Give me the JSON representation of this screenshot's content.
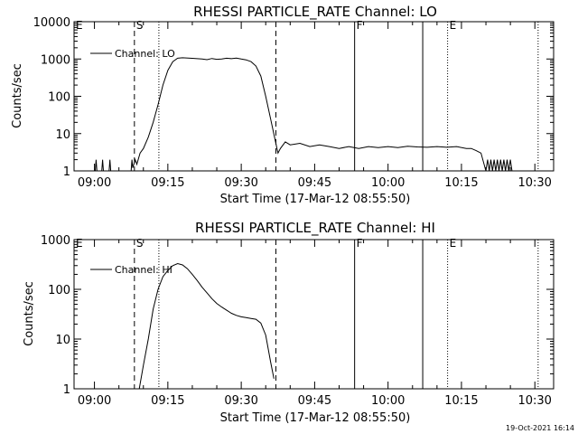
{
  "chart_data": [
    {
      "type": "line",
      "title": "RHESSI PARTICLE_RATE Channel: LO",
      "xlabel": "Start Time (17-Mar-12 08:55:50)",
      "ylabel": "Counts/sec",
      "y_scale": "log",
      "ylim": [
        1,
        10000
      ],
      "x_unit": "minutes after 08:55:50",
      "xlim": [
        0,
        38
      ],
      "x_tick_labels": [
        "09:00",
        "09:15",
        "09:30",
        "09:45",
        "10:00",
        "10:15",
        "10:30"
      ],
      "y_tick_labels": [
        "1",
        "10",
        "100",
        "1000",
        "10000"
      ],
      "y_ticks": [
        1,
        10,
        100,
        1000,
        10000
      ],
      "legend": {
        "position": "top-left",
        "entries": [
          "Channel: LO"
        ]
      },
      "markers": [
        {
          "label": "E",
          "time": "08:55:50",
          "style": "solid"
        },
        {
          "label": "S",
          "time": "09:08:10",
          "style": "dashed"
        },
        {
          "label": "",
          "time": "09:13:10",
          "style": "dotted"
        },
        {
          "label": "",
          "time": "09:37:05",
          "style": "dashed"
        },
        {
          "label": "F",
          "time": "09:53:10",
          "style": "solid"
        },
        {
          "label": "",
          "time": "10:07:05",
          "style": "solid"
        },
        {
          "label": "E",
          "time": "10:12:10",
          "style": "dotted"
        },
        {
          "label": "",
          "time": "10:30:40",
          "style": "dotted"
        }
      ],
      "series": [
        {
          "name": "Channel: LO",
          "points": [
            [
              "09:00:10",
              1
            ],
            [
              "09:00:20",
              2
            ],
            [
              "09:00:30",
              1
            ],
            [
              "09:01:30",
              1
            ],
            [
              "09:01:40",
              2
            ],
            [
              "09:01:50",
              1
            ],
            [
              "09:03:00",
              1
            ],
            [
              "09:03:10",
              2
            ],
            [
              "09:03:20",
              1
            ],
            [
              "09:07:30",
              1
            ],
            [
              "09:07:40",
              2
            ],
            [
              "09:07:50",
              1.2
            ],
            [
              "09:08:20",
              2
            ],
            [
              "09:08:40",
              1.5
            ],
            [
              "09:09:20",
              3
            ],
            [
              "09:10:00",
              4
            ],
            [
              "09:11:00",
              8
            ],
            [
              "09:12:00",
              20
            ],
            [
              "09:13:00",
              60
            ],
            [
              "09:14:00",
              200
            ],
            [
              "09:15:00",
              500
            ],
            [
              "09:16:00",
              850
            ],
            [
              "09:17:00",
              1050
            ],
            [
              "09:18:00",
              1080
            ],
            [
              "09:20:00",
              1040
            ],
            [
              "09:22:00",
              1000
            ],
            [
              "09:23:00",
              960
            ],
            [
              "09:24:00",
              1030
            ],
            [
              "09:25:00",
              980
            ],
            [
              "09:26:00",
              1000
            ],
            [
              "09:27:00",
              1050
            ],
            [
              "09:28:00",
              1020
            ],
            [
              "09:29:00",
              1060
            ],
            [
              "09:30:00",
              1000
            ],
            [
              "09:31:00",
              950
            ],
            [
              "09:32:00",
              850
            ],
            [
              "09:33:00",
              650
            ],
            [
              "09:34:00",
              350
            ],
            [
              "09:35:00",
              100
            ],
            [
              "09:36:00",
              25
            ],
            [
              "09:37:00",
              6
            ],
            [
              "09:37:30",
              3
            ],
            [
              "09:38:00",
              4
            ],
            [
              "09:39:00",
              6
            ],
            [
              "09:40:00",
              5
            ],
            [
              "09:42:00",
              5.5
            ],
            [
              "09:44:00",
              4.5
            ],
            [
              "09:46:00",
              5
            ],
            [
              "09:48:00",
              4.5
            ],
            [
              "09:50:00",
              4
            ],
            [
              "09:52:00",
              4.5
            ],
            [
              "09:54:00",
              4
            ],
            [
              "09:56:00",
              4.5
            ],
            [
              "09:58:00",
              4.2
            ],
            [
              "10:00:00",
              4.5
            ],
            [
              "10:02:00",
              4.2
            ],
            [
              "10:04:00",
              4.6
            ],
            [
              "10:06:00",
              4.4
            ],
            [
              "10:08:00",
              4.3
            ],
            [
              "10:10:00",
              4.5
            ],
            [
              "10:12:00",
              4.3
            ],
            [
              "10:14:00",
              4.5
            ],
            [
              "10:16:00",
              4.0
            ],
            [
              "10:17:00",
              4.0
            ],
            [
              "10:18:00",
              3.5
            ],
            [
              "10:19:00",
              3.0
            ],
            [
              "10:20:00",
              1.0
            ],
            [
              "10:20:20",
              2.0
            ],
            [
              "10:20:40",
              1.0
            ],
            [
              "10:21:00",
              2.0
            ],
            [
              "10:21:20",
              1.0
            ],
            [
              "10:21:40",
              2.0
            ],
            [
              "10:22:00",
              1.0
            ],
            [
              "10:22:20",
              2.0
            ],
            [
              "10:22:40",
              1.0
            ],
            [
              "10:23:00",
              2.0
            ],
            [
              "10:23:20",
              1.0
            ],
            [
              "10:23:40",
              2.0
            ],
            [
              "10:24:00",
              1.0
            ],
            [
              "10:24:20",
              2.0
            ],
            [
              "10:24:40",
              1.0
            ],
            [
              "10:25:00",
              2.0
            ],
            [
              "10:25:20",
              1.0
            ]
          ]
        }
      ]
    },
    {
      "type": "line",
      "title": "RHESSI PARTICLE_RATE Channel: HI",
      "xlabel": "Start Time (17-Mar-12 08:55:50)",
      "ylabel": "Counts/sec",
      "y_scale": "log",
      "ylim": [
        1,
        1000
      ],
      "x_tick_labels": [
        "09:00",
        "09:15",
        "09:30",
        "09:45",
        "10:00",
        "10:15",
        "10:30"
      ],
      "y_tick_labels": [
        "1",
        "10",
        "100",
        "1000"
      ],
      "y_ticks": [
        1,
        10,
        100,
        1000
      ],
      "legend": {
        "position": "top-left",
        "entries": [
          "Channel: HI"
        ]
      },
      "markers": [
        {
          "label": "E",
          "time": "08:55:50",
          "style": "solid"
        },
        {
          "label": "S",
          "time": "09:08:10",
          "style": "dashed"
        },
        {
          "label": "",
          "time": "09:13:10",
          "style": "dotted"
        },
        {
          "label": "",
          "time": "09:37:05",
          "style": "dashed"
        },
        {
          "label": "F",
          "time": "09:53:10",
          "style": "solid"
        },
        {
          "label": "",
          "time": "10:07:05",
          "style": "solid"
        },
        {
          "label": "E",
          "time": "10:12:10",
          "style": "dotted"
        },
        {
          "label": "",
          "time": "10:30:40",
          "style": "dotted"
        }
      ],
      "series": [
        {
          "name": "Channel: HI",
          "points": [
            [
              "09:09:10",
              1
            ],
            [
              "09:10:00",
              3
            ],
            [
              "09:11:00",
              10
            ],
            [
              "09:12:00",
              40
            ],
            [
              "09:13:00",
              100
            ],
            [
              "09:14:00",
              180
            ],
            [
              "09:15:00",
              240
            ],
            [
              "09:16:00",
              300
            ],
            [
              "09:17:00",
              330
            ],
            [
              "09:18:00",
              310
            ],
            [
              "09:19:00",
              260
            ],
            [
              "09:20:00",
              200
            ],
            [
              "09:21:00",
              150
            ],
            [
              "09:22:00",
              110
            ],
            [
              "09:23:00",
              85
            ],
            [
              "09:24:00",
              65
            ],
            [
              "09:25:00",
              52
            ],
            [
              "09:26:00",
              44
            ],
            [
              "09:27:00",
              38
            ],
            [
              "09:28:00",
              33
            ],
            [
              "09:29:00",
              30
            ],
            [
              "09:30:00",
              28
            ],
            [
              "09:31:00",
              27
            ],
            [
              "09:32:00",
              26
            ],
            [
              "09:33:00",
              25
            ],
            [
              "09:34:00",
              21
            ],
            [
              "09:35:00",
              12
            ],
            [
              "09:36:00",
              3.5
            ],
            [
              "09:36:40",
              1.6
            ]
          ]
        }
      ]
    }
  ],
  "footer": {
    "timestamp": "19-Oct-2021 16:14"
  }
}
